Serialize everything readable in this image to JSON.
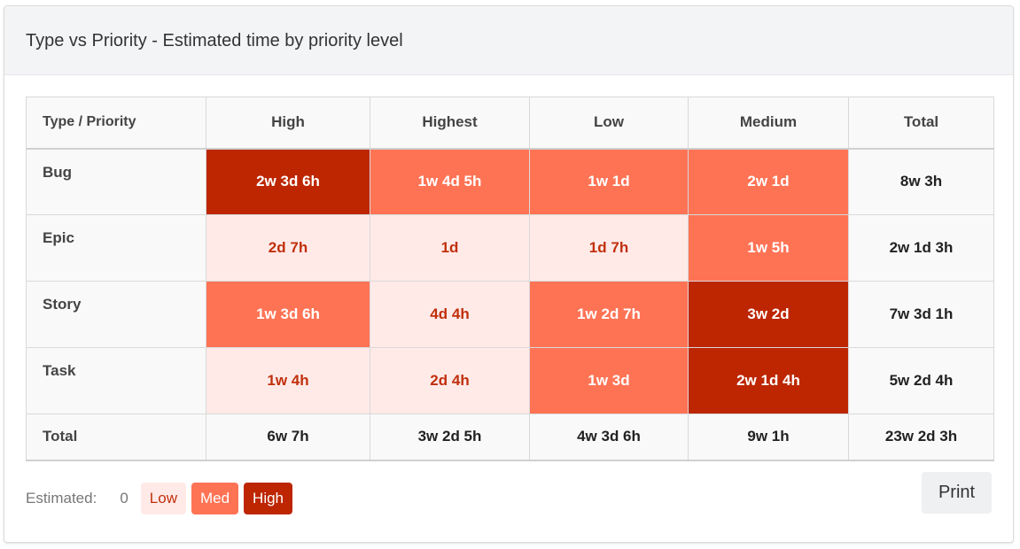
{
  "header": {
    "title": "Type vs Priority - Estimated time by priority level"
  },
  "table": {
    "corner_label": "Type / Priority",
    "columns": [
      "High",
      "Highest",
      "Low",
      "Medium"
    ],
    "total_label": "Total",
    "rows": [
      {
        "type": "Bug",
        "cells": [
          {
            "value": "2w 3d 6h",
            "level": "high"
          },
          {
            "value": "1w 4d 5h",
            "level": "med"
          },
          {
            "value": "1w 1d",
            "level": "med"
          },
          {
            "value": "2w 1d",
            "level": "med"
          }
        ],
        "total": "8w 3h"
      },
      {
        "type": "Epic",
        "cells": [
          {
            "value": "2d 7h",
            "level": "low"
          },
          {
            "value": "1d",
            "level": "low"
          },
          {
            "value": "1d 7h",
            "level": "low"
          },
          {
            "value": "1w 5h",
            "level": "med"
          }
        ],
        "total": "2w 1d 3h"
      },
      {
        "type": "Story",
        "cells": [
          {
            "value": "1w 3d 6h",
            "level": "med"
          },
          {
            "value": "4d 4h",
            "level": "low"
          },
          {
            "value": "1w 2d 7h",
            "level": "med"
          },
          {
            "value": "3w 2d",
            "level": "high"
          }
        ],
        "total": "7w 3d 1h"
      },
      {
        "type": "Task",
        "cells": [
          {
            "value": "1w 4h",
            "level": "low"
          },
          {
            "value": "2d 4h",
            "level": "low"
          },
          {
            "value": "1w 3d",
            "level": "med"
          },
          {
            "value": "2w 1d 4h",
            "level": "high"
          }
        ],
        "total": "5w 2d 4h"
      }
    ],
    "footer": {
      "label": "Total",
      "values": [
        "6w 7h",
        "3w 2d 5h",
        "4w 3d 6h",
        "9w 1h"
      ],
      "grand_total": "23w 2d 3h"
    }
  },
  "legend": {
    "label": "Estimated:",
    "zero": "0",
    "low": "Low",
    "med": "Med",
    "high": "High"
  },
  "colors": {
    "low_bg": "#ffeae8",
    "low_text": "#c0300c",
    "med_bg": "#ff7355",
    "high_bg": "#bd2600"
  },
  "actions": {
    "print_label": "Print"
  }
}
